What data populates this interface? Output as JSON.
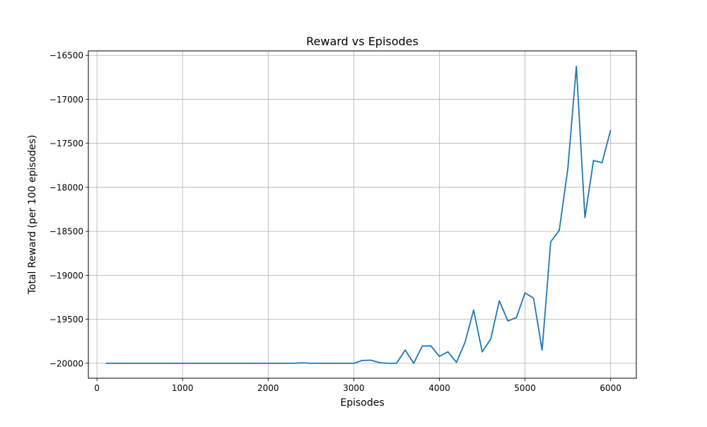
{
  "chart_data": {
    "type": "line",
    "title": "Reward vs Episodes",
    "xlabel": "Episodes",
    "ylabel": "Total Reward (per 100 episodes)",
    "xlim": [
      -100,
      6300
    ],
    "ylim": [
      -20170,
      -16450
    ],
    "xticks": [
      0,
      1000,
      2000,
      3000,
      4000,
      5000,
      6000
    ],
    "yticks": [
      -20000,
      -19500,
      -19000,
      -18500,
      -18000,
      -17500,
      -17000,
      -16500
    ],
    "grid": true,
    "line_color": "#1f77b4",
    "series": [
      {
        "x": [
          100,
          200,
          300,
          400,
          500,
          600,
          700,
          800,
          900,
          1000,
          1100,
          1200,
          1300,
          1400,
          1500,
          1600,
          1700,
          1800,
          1900,
          2000,
          2100,
          2200,
          2300,
          2400,
          2500,
          2600,
          2700,
          2800,
          2900,
          3000,
          3100,
          3200,
          3300,
          3400,
          3500,
          3600,
          3700,
          3800,
          3900,
          4000,
          4100,
          4200,
          4300,
          4400,
          4500,
          4600,
          4700,
          4800,
          4900,
          5000,
          5100,
          5200,
          5300,
          5400,
          5500,
          5600,
          5700,
          5800,
          5900,
          6000
        ],
        "values": [
          -20000,
          -20000,
          -20000,
          -20000,
          -20000,
          -20000,
          -20000,
          -20000,
          -20000,
          -20000,
          -20000,
          -20000,
          -20000,
          -20000,
          -20000,
          -20000,
          -20000,
          -20000,
          -20000,
          -20000,
          -20000,
          -20000,
          -20000,
          -19995,
          -20000,
          -20000,
          -20000,
          -20000,
          -20000,
          -20000,
          -19968,
          -19965,
          -19993,
          -20000,
          -20000,
          -19850,
          -20000,
          -19805,
          -19802,
          -19922,
          -19870,
          -19990,
          -19760,
          -19395,
          -19870,
          -19725,
          -19290,
          -19520,
          -19480,
          -19200,
          -19260,
          -19850,
          -18620,
          -18490,
          -17790,
          -16625,
          -18345,
          -17695,
          -17720,
          -17350
        ]
      }
    ]
  }
}
